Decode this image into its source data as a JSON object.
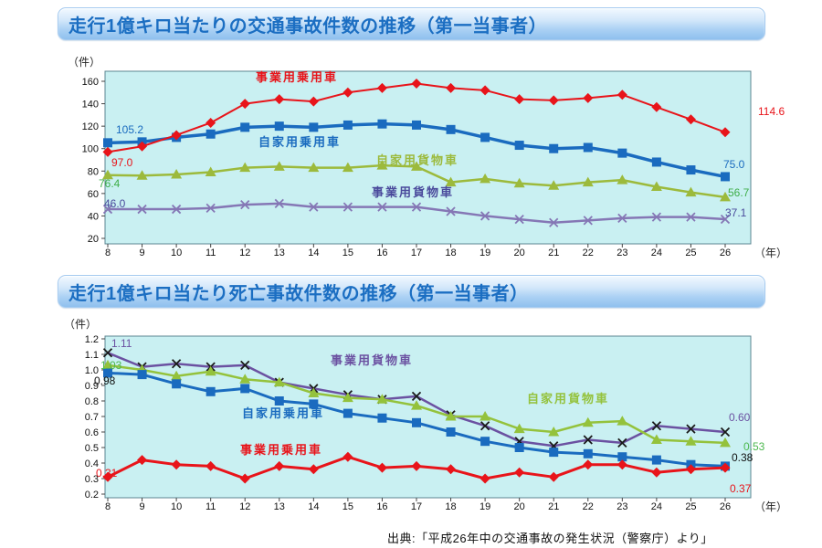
{
  "style": {
    "plot_bg": "#c9f0f2",
    "plot_border": "#5c8691",
    "axis_tick_color": "#444444",
    "title_color": "#1b6ec2"
  },
  "source_note": "出典:「平成26年中の交通事故の発生状況（警察庁）より」",
  "chart_data": [
    {
      "type": "line",
      "title": "走行1億キロ当たりの交通事故件数の推移（第一当事者）",
      "unit_label": "（件）",
      "x_unit_label": "（年）",
      "x": [
        8,
        9,
        10,
        11,
        12,
        13,
        14,
        15,
        16,
        17,
        18,
        19,
        20,
        21,
        22,
        23,
        24,
        25,
        26
      ],
      "ylim": [
        20,
        160
      ],
      "ytick_step": 20,
      "grid": false,
      "legend": "inline-labels",
      "series": [
        {
          "name": "事業用乗用車",
          "marker": "diamond",
          "color": "#e8141a",
          "label_color": "#e8141a",
          "width": 2,
          "values": [
            97.0,
            102,
            112,
            123,
            140,
            144,
            142,
            150,
            154,
            158,
            154,
            152,
            144,
            143,
            145,
            148,
            137,
            126,
            114.6
          ],
          "start_label": "97.0",
          "end_label": "114.6"
        },
        {
          "name": "自家用乗用車",
          "marker": "square",
          "color": "#1a6bbf",
          "label_color": "#1a6bbf",
          "width": 3.5,
          "values": [
            105.2,
            106,
            110,
            113,
            119,
            120,
            119,
            121,
            122,
            121,
            117,
            110,
            103,
            100,
            101,
            96,
            88,
            81,
            75.0
          ],
          "start_label": "105.2",
          "end_label": "75.0"
        },
        {
          "name": "自家用貨物車",
          "marker": "triangle",
          "color": "#9cba3c",
          "label_color": "#3fae49",
          "width": 2.5,
          "values": [
            76.4,
            76,
            77,
            79,
            83,
            84,
            83,
            83,
            85,
            84,
            70,
            73,
            69,
            67,
            70,
            72,
            66,
            61,
            56.7
          ],
          "start_label": "76.4",
          "end_label": "56.7"
        },
        {
          "name": "事業用貨物車",
          "marker": "x",
          "color": "#8577b5",
          "name_color": "#4a4a9c",
          "label_color": "#4a4a9c",
          "width": 2.5,
          "values": [
            46.0,
            46,
            46,
            47,
            50,
            51,
            48,
            48,
            48,
            48,
            44,
            40,
            37,
            34,
            36,
            38,
            39,
            39,
            37.1
          ],
          "start_label": "46.0",
          "end_label": "37.1"
        }
      ]
    },
    {
      "type": "line",
      "title": "走行1億キロ当たり死亡事故件数の推移（第一当事者）",
      "unit_label": "（件）",
      "x_unit_label": "（年）",
      "x": [
        8,
        9,
        10,
        11,
        12,
        13,
        14,
        15,
        16,
        17,
        18,
        19,
        20,
        21,
        22,
        23,
        24,
        25,
        26
      ],
      "ylim": [
        0.2,
        1.2
      ],
      "ytick_step": 0.1,
      "grid": false,
      "legend": "inline-labels",
      "series": [
        {
          "name": "事業用乗用車",
          "marker": "diamond",
          "color": "#e8141a",
          "label_color": "#e8141a",
          "width": 3,
          "values": [
            0.31,
            0.42,
            0.39,
            0.38,
            0.3,
            0.38,
            0.36,
            0.44,
            0.37,
            0.38,
            0.36,
            0.3,
            0.34,
            0.31,
            0.39,
            0.39,
            0.34,
            0.36,
            0.37
          ],
          "start_label": "0.31",
          "end_label": "0.37"
        },
        {
          "name": "自家用乗用車",
          "marker": "square",
          "color": "#1a6bbf",
          "label_color": "#111111",
          "width": 3,
          "values": [
            0.98,
            0.97,
            0.91,
            0.86,
            0.88,
            0.8,
            0.78,
            0.72,
            0.69,
            0.66,
            0.6,
            0.54,
            0.5,
            0.47,
            0.46,
            0.44,
            0.42,
            0.39,
            0.38
          ],
          "start_label": "0.98",
          "end_label": "0.38"
        },
        {
          "name": "自家用貨物車",
          "marker": "triangle",
          "color": "#94c23c",
          "label_color": "#4cb84f",
          "width": 2.5,
          "values": [
            1.03,
            1.0,
            0.96,
            0.99,
            0.94,
            0.92,
            0.85,
            0.82,
            0.81,
            0.77,
            0.7,
            0.7,
            0.62,
            0.6,
            0.66,
            0.67,
            0.55,
            0.54,
            0.53
          ],
          "start_label": "1.03",
          "end_label": "0.53"
        },
        {
          "name": "事業用貨物車",
          "marker": "x",
          "color": "#6b51a1",
          "marker_color": "#1a1a1a",
          "label_color": "#6b51a1",
          "width": 2.5,
          "values": [
            1.11,
            1.02,
            1.04,
            1.02,
            1.03,
            0.92,
            0.88,
            0.84,
            0.81,
            0.83,
            0.71,
            0.64,
            0.54,
            0.51,
            0.55,
            0.53,
            0.64,
            0.62,
            0.6
          ],
          "start_label": "1.11",
          "end_label": "0.60"
        }
      ]
    }
  ]
}
